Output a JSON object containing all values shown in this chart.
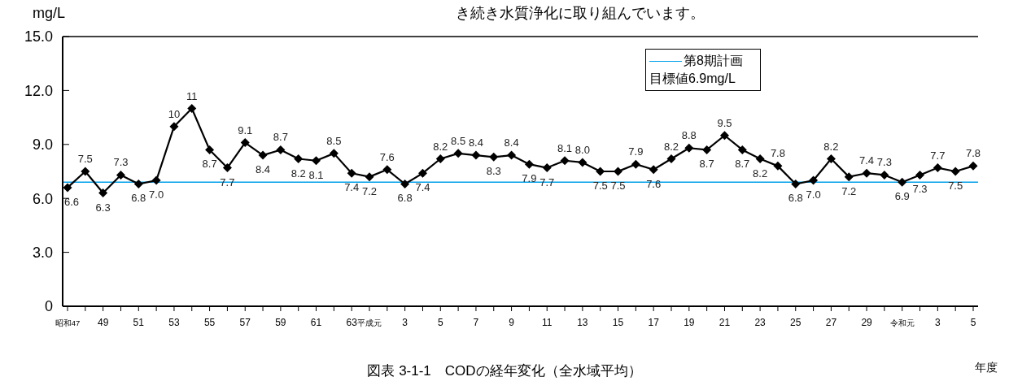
{
  "chart_data": {
    "type": "line",
    "title": "図表 3-1-1　CODの経年変化（全水域平均）",
    "ylabel": "mg/L",
    "xlabel": "年度",
    "annotations": [
      "き続き水質浄化に取り組んでいます。"
    ],
    "categories": [
      "昭和47",
      null,
      "49",
      null,
      "51",
      null,
      "53",
      null,
      "55",
      null,
      "57",
      null,
      "59",
      null,
      "61",
      null,
      "63",
      "平成元",
      null,
      "3",
      null,
      "5",
      null,
      "7",
      null,
      "9",
      null,
      "11",
      null,
      "13",
      null,
      "15",
      null,
      "17",
      null,
      "19",
      null,
      "21",
      null,
      "23",
      null,
      "25",
      null,
      "27",
      null,
      "29",
      null,
      "令和元",
      null,
      "3",
      null,
      "5"
    ],
    "series": [
      {
        "color": "#000000",
        "values": [
          6.6,
          7.5,
          6.3,
          7.3,
          6.8,
          7.0,
          10,
          11,
          8.7,
          7.7,
          9.1,
          8.4,
          8.7,
          8.2,
          8.1,
          8.5,
          7.4,
          7.2,
          7.6,
          6.8,
          7.4,
          8.2,
          8.5,
          8.4,
          8.3,
          8.4,
          7.9,
          7.7,
          8.1,
          8.0,
          7.5,
          7.5,
          7.9,
          7.6,
          8.2,
          8.8,
          8.7,
          9.5,
          8.7,
          8.2,
          7.8,
          6.8,
          7.0,
          8.2,
          7.2,
          7.4,
          7.3,
          6.9,
          7.3,
          7.7,
          7.5,
          7.8
        ],
        "value_labels": [
          "6.6",
          "7.5",
          "6.3",
          "7.3",
          "6.8",
          "7.0",
          "10",
          "11",
          "8.7",
          "7.7",
          "9.1",
          "8.4",
          "8.7",
          "8.2",
          "8.1",
          "8.5",
          "7.4",
          "7.2",
          "7.6",
          "6.8",
          "7.4",
          "8.2",
          "8.5",
          "8.4",
          "8.3",
          "8.4",
          "7.9",
          "7.7",
          "8.1",
          "8.0",
          "7.5",
          "7.5",
          "7.9",
          "7.6",
          "8.2",
          "8.8",
          "8.7",
          "9.5",
          "8.7",
          "8.2",
          "7.8",
          "6.8",
          "7.0",
          "8.2",
          "7.2",
          "7.4",
          "7.3",
          "6.9",
          "7.3",
          "7.7",
          "7.5",
          "7.8"
        ]
      }
    ],
    "ylim": [
      0,
      15
    ],
    "yticks": [
      0,
      {
        "value": 3,
        "label": "3.0"
      },
      {
        "value": 6,
        "label": "6.0"
      },
      {
        "value": 9,
        "label": "9.0"
      },
      {
        "value": 12,
        "label": "12.0"
      },
      {
        "value": 15,
        "label": "15.0"
      }
    ],
    "ref_lines": [
      {
        "axis": "y",
        "value": 6.9,
        "label": "第8期計画目標値6.9mg/L",
        "color": "#00a0e9"
      }
    ],
    "legend": "top right",
    "marker": "diamond",
    "grid": false
  }
}
